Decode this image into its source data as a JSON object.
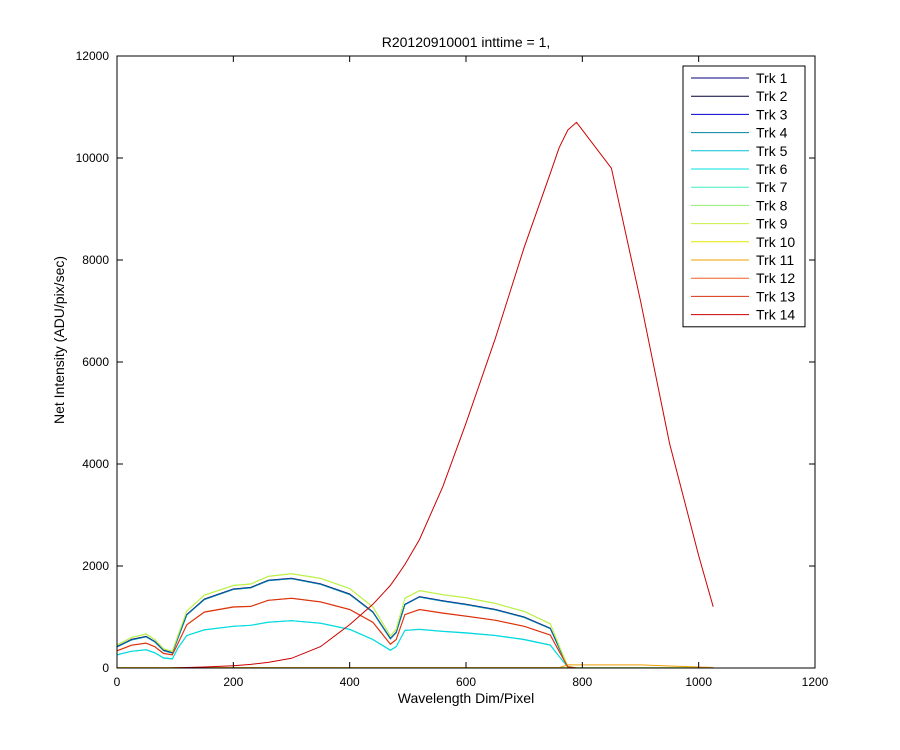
{
  "chart_data": {
    "type": "line",
    "title": "R20120910001 inttime = 1,",
    "xlabel": "Wavelength Dim/Pixel",
    "ylabel": "Net Intensity (ADU/pix/sec)",
    "xlim": [
      0,
      1200
    ],
    "ylim": [
      0,
      12000
    ],
    "xticks": [
      0,
      200,
      400,
      600,
      800,
      1000,
      1200
    ],
    "yticks": [
      0,
      2000,
      4000,
      6000,
      8000,
      10000,
      12000
    ],
    "grid": false,
    "legend_position": "top-right",
    "x": [
      0,
      25,
      50,
      65,
      80,
      95,
      105,
      120,
      150,
      200,
      230,
      260,
      300,
      350,
      400,
      440,
      470,
      480,
      495,
      520,
      560,
      600,
      650,
      700,
      745,
      760,
      775,
      790,
      850,
      900,
      950,
      1000,
      1025
    ],
    "series": [
      {
        "name": "Trk 1",
        "color": "#000080",
        "values": [
          2,
          2,
          2,
          2,
          2,
          2,
          2,
          2,
          2,
          2,
          2,
          2,
          2,
          2,
          2,
          2,
          2,
          2,
          2,
          2,
          2,
          2,
          2,
          2,
          2,
          2,
          2,
          2,
          2,
          2,
          2,
          2,
          2
        ]
      },
      {
        "name": "Trk 2",
        "color": "#000033",
        "values": [
          420,
          560,
          620,
          520,
          350,
          300,
          600,
          1050,
          1350,
          1550,
          1580,
          1720,
          1760,
          1650,
          1450,
          1100,
          580,
          700,
          1250,
          1400,
          1320,
          1250,
          1150,
          1000,
          780,
          400,
          30,
          0,
          0,
          0,
          0,
          0,
          0
        ]
      },
      {
        "name": "Trk 3",
        "color": "#0000cc",
        "values": [
          415,
          555,
          615,
          515,
          345,
          295,
          595,
          1045,
          1345,
          1545,
          1575,
          1715,
          1755,
          1645,
          1445,
          1095,
          575,
          695,
          1245,
          1395,
          1315,
          1245,
          1145,
          995,
          775,
          395,
          28,
          0,
          0,
          0,
          0,
          0,
          0
        ]
      },
      {
        "name": "Trk 4",
        "color": "#0080a0",
        "values": [
          410,
          550,
          610,
          510,
          340,
          290,
          590,
          1040,
          1340,
          1540,
          1570,
          1710,
          1750,
          1640,
          1440,
          1090,
          570,
          690,
          1240,
          1390,
          1310,
          1240,
          1140,
          990,
          770,
          390,
          26,
          0,
          0,
          0,
          0,
          0,
          0
        ]
      },
      {
        "name": "Trk 5",
        "color": "#00bfd0",
        "values": [
          260,
          330,
          360,
          300,
          200,
          180,
          400,
          640,
          750,
          820,
          840,
          900,
          930,
          880,
          760,
          560,
          350,
          420,
          740,
          760,
          720,
          690,
          640,
          560,
          450,
          230,
          20,
          0,
          0,
          0,
          0,
          0,
          0
        ]
      },
      {
        "name": "Trk 6",
        "color": "#00e0e0",
        "values": [
          255,
          325,
          355,
          295,
          195,
          175,
          395,
          635,
          745,
          815,
          835,
          895,
          925,
          875,
          755,
          555,
          345,
          415,
          735,
          755,
          715,
          685,
          635,
          555,
          445,
          225,
          18,
          0,
          0,
          0,
          0,
          0,
          0
        ]
      },
      {
        "name": "Trk 7",
        "color": "#40f0c0",
        "values": [
          5,
          5,
          5,
          5,
          5,
          5,
          5,
          5,
          5,
          5,
          5,
          5,
          5,
          5,
          5,
          5,
          5,
          5,
          5,
          5,
          5,
          5,
          5,
          5,
          5,
          5,
          5,
          5,
          5,
          5,
          5,
          5,
          5
        ]
      },
      {
        "name": "Trk 8",
        "color": "#90ee70",
        "values": [
          450,
          600,
          670,
          560,
          380,
          330,
          650,
          1120,
          1430,
          1620,
          1650,
          1800,
          1850,
          1760,
          1560,
          1200,
          630,
          760,
          1370,
          1520,
          1440,
          1380,
          1270,
          1110,
          870,
          440,
          35,
          0,
          0,
          0,
          0,
          0,
          0
        ]
      },
      {
        "name": "Trk 9",
        "color": "#c8f040",
        "values": [
          445,
          595,
          665,
          555,
          375,
          325,
          645,
          1115,
          1425,
          1615,
          1645,
          1795,
          1845,
          1755,
          1555,
          1195,
          625,
          755,
          1365,
          1515,
          1435,
          1375,
          1265,
          1105,
          865,
          435,
          33,
          0,
          0,
          0,
          0,
          0,
          0
        ]
      },
      {
        "name": "Trk 10",
        "color": "#e8e800",
        "values": [
          3,
          3,
          3,
          3,
          3,
          3,
          3,
          3,
          3,
          3,
          3,
          3,
          3,
          3,
          3,
          3,
          3,
          3,
          3,
          3,
          3,
          3,
          3,
          3,
          3,
          3,
          3,
          3,
          3,
          3,
          3,
          3,
          3
        ]
      },
      {
        "name": "Trk 11",
        "color": "#f0a000",
        "values": [
          8,
          8,
          8,
          8,
          8,
          8,
          8,
          8,
          8,
          8,
          8,
          8,
          8,
          8,
          8,
          8,
          8,
          8,
          8,
          8,
          8,
          8,
          8,
          8,
          8,
          8,
          60,
          60,
          60,
          60,
          40,
          20,
          10
        ]
      },
      {
        "name": "Trk 12",
        "color": "#f06020",
        "values": [
          340,
          450,
          490,
          420,
          290,
          260,
          490,
          850,
          1100,
          1200,
          1210,
          1330,
          1370,
          1300,
          1150,
          900,
          470,
          560,
          1050,
          1150,
          1080,
          1020,
          940,
          820,
          650,
          330,
          25,
          0,
          0,
          0,
          0,
          0,
          0
        ]
      },
      {
        "name": "Trk 13",
        "color": "#d83010",
        "values": [
          335,
          445,
          485,
          415,
          285,
          255,
          485,
          845,
          1095,
          1195,
          1205,
          1325,
          1365,
          1295,
          1145,
          895,
          465,
          555,
          1045,
          1145,
          1075,
          1015,
          935,
          815,
          645,
          325,
          22,
          0,
          0,
          0,
          0,
          0,
          0
        ]
      },
      {
        "name": "Trk 14",
        "color": "#cc0000",
        "values": [
          0,
          0,
          0,
          0,
          0,
          2,
          5,
          10,
          20,
          45,
          70,
          110,
          190,
          420,
          850,
          1250,
          1620,
          1780,
          2030,
          2520,
          3550,
          4800,
          6450,
          8250,
          9700,
          10200,
          10550,
          10700,
          9800,
          7200,
          4400,
          2200,
          1200
        ]
      }
    ]
  }
}
